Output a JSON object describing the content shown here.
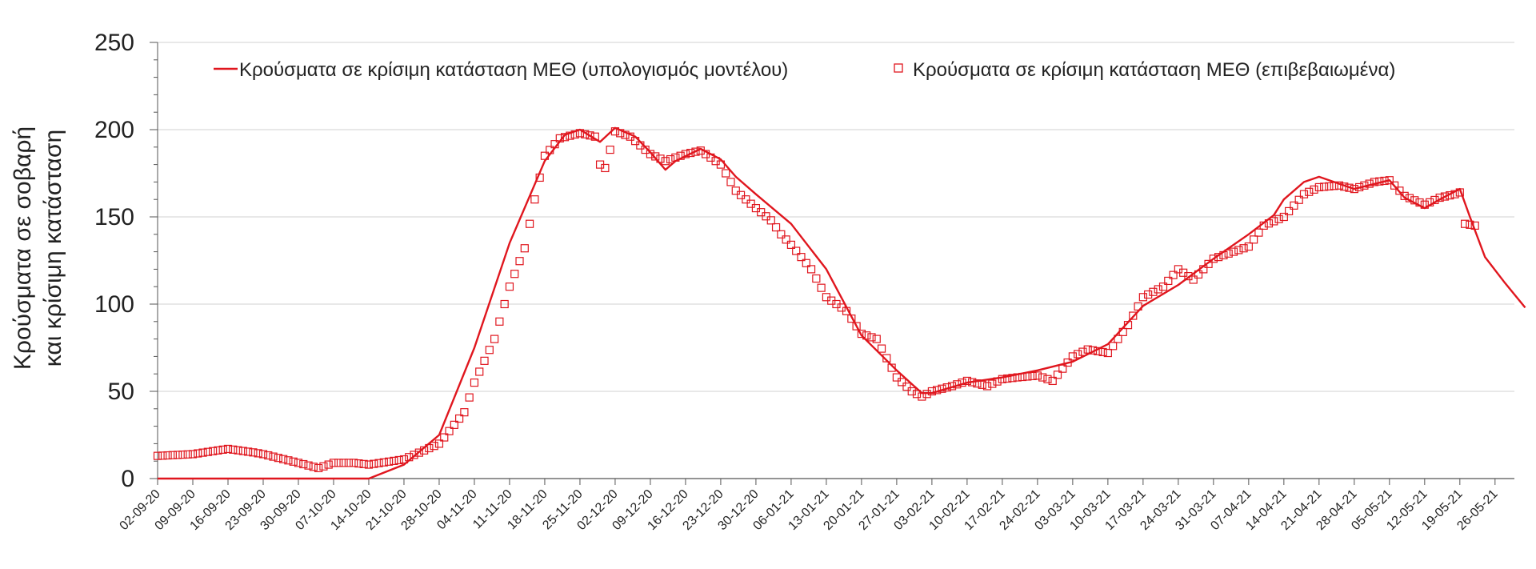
{
  "chart_data": {
    "type": "line",
    "ylabel_lines": [
      "Κρούσματα σε σοβαρή",
      "και κρίσιμη κατάσταση"
    ],
    "ylim": [
      0,
      250
    ],
    "yticks": [
      0,
      50,
      100,
      150,
      200,
      250
    ],
    "grid": true,
    "legend_position": "top",
    "colors": {
      "series": "#e0161e",
      "grid": "#d0d0d0",
      "axis": "#555555"
    },
    "x_tick_labels": [
      "02-09-20",
      "09-09-20",
      "16-09-20",
      "23-09-20",
      "30-09-20",
      "07-10-20",
      "14-10-20",
      "21-10-20",
      "28-10-20",
      "04-11-20",
      "11-11-20",
      "18-11-20",
      "25-11-20",
      "02-12-20",
      "09-12-20",
      "16-12-20",
      "23-12-20",
      "30-12-20",
      "06-01-21",
      "13-01-21",
      "20-01-21",
      "27-01-21",
      "03-02-21",
      "10-02-21",
      "17-02-21",
      "24-02-21",
      "03-03-21",
      "10-03-21",
      "17-03-21",
      "24-03-21",
      "31-03-21",
      "07-04-21",
      "14-04-21",
      "21-04-21",
      "28-04-21",
      "05-05-21",
      "12-05-21",
      "19-05-21",
      "26-05-21"
    ],
    "series": [
      {
        "name": "Κρούσματα σε κρίσιμη κατάσταση ΜΕΘ (υπολογισμός μοντέλου)",
        "style": "line",
        "points": [
          [
            "02-09-20",
            0
          ],
          [
            "14-10-20",
            0
          ],
          [
            "21-10-20",
            8
          ],
          [
            "28-10-20",
            25
          ],
          [
            "04-11-20",
            75
          ],
          [
            "11-11-20",
            135
          ],
          [
            "18-11-20",
            182
          ],
          [
            "22-11-20",
            197
          ],
          [
            "25-11-20",
            200
          ],
          [
            "29-11-20",
            193
          ],
          [
            "02-12-20",
            201
          ],
          [
            "06-12-20",
            196
          ],
          [
            "09-12-20",
            187
          ],
          [
            "12-12-20",
            177
          ],
          [
            "14-12-20",
            182
          ],
          [
            "19-12-20",
            189
          ],
          [
            "23-12-20",
            183
          ],
          [
            "26-12-20",
            173
          ],
          [
            "30-12-20",
            163
          ],
          [
            "06-01-21",
            146
          ],
          [
            "13-01-21",
            120
          ],
          [
            "20-01-21",
            82
          ],
          [
            "27-01-21",
            62
          ],
          [
            "01-02-21",
            49
          ],
          [
            "03-02-21",
            49
          ],
          [
            "10-02-21",
            55
          ],
          [
            "17-02-21",
            58
          ],
          [
            "24-02-21",
            62
          ],
          [
            "03-03-21",
            67
          ],
          [
            "10-03-21",
            77
          ],
          [
            "17-03-21",
            99
          ],
          [
            "24-03-21",
            111
          ],
          [
            "31-03-21",
            126
          ],
          [
            "07-04-21",
            140
          ],
          [
            "12-04-21",
            151
          ],
          [
            "14-04-21",
            160
          ],
          [
            "18-04-21",
            170
          ],
          [
            "21-04-21",
            173
          ],
          [
            "25-04-21",
            169
          ],
          [
            "28-04-21",
            166
          ],
          [
            "05-05-21",
            171
          ],
          [
            "08-05-21",
            161
          ],
          [
            "12-05-21",
            155
          ],
          [
            "15-05-21",
            160
          ],
          [
            "19-05-21",
            166
          ],
          [
            "21-05-21",
            150
          ],
          [
            "24-05-21",
            127
          ],
          [
            "28-05-21",
            112
          ],
          [
            "01-06-21",
            98
          ]
        ]
      },
      {
        "name": "Κρούσματα σε κρίσιμη κατάσταση ΜΕΘ (επιβεβαιωμένα)",
        "style": "markers",
        "points": [
          [
            "02-09-20",
            13
          ],
          [
            "09-09-20",
            14
          ],
          [
            "16-09-20",
            17
          ],
          [
            "21-09-20",
            15
          ],
          [
            "23-09-20",
            14
          ],
          [
            "30-09-20",
            9
          ],
          [
            "04-10-20",
            6
          ],
          [
            "07-10-20",
            9
          ],
          [
            "11-10-20",
            9
          ],
          [
            "14-10-20",
            8
          ],
          [
            "21-10-20",
            11
          ],
          [
            "28-10-20",
            20
          ],
          [
            "02-11-20",
            38
          ],
          [
            "04-11-20",
            55
          ],
          [
            "08-11-20",
            80
          ],
          [
            "11-11-20",
            110
          ],
          [
            "14-11-20",
            132
          ],
          [
            "16-11-20",
            160
          ],
          [
            "18-11-20",
            185
          ],
          [
            "21-11-20",
            195
          ],
          [
            "25-11-20",
            198
          ],
          [
            "28-11-20",
            196
          ],
          [
            "29-11-20",
            180
          ],
          [
            "30-11-20",
            178
          ],
          [
            "02-12-20",
            199
          ],
          [
            "05-12-20",
            196
          ],
          [
            "09-12-20",
            186
          ],
          [
            "12-12-20",
            182
          ],
          [
            "16-12-20",
            186
          ],
          [
            "19-12-20",
            188
          ],
          [
            "23-12-20",
            180
          ],
          [
            "26-12-20",
            165
          ],
          [
            "30-12-20",
            155
          ],
          [
            "02-01-21",
            148
          ],
          [
            "04-01-21",
            140
          ],
          [
            "06-01-21",
            134
          ],
          [
            "10-01-21",
            120
          ],
          [
            "13-01-21",
            104
          ],
          [
            "17-01-21",
            96
          ],
          [
            "20-01-21",
            83
          ],
          [
            "23-01-21",
            80
          ],
          [
            "27-01-21",
            58
          ],
          [
            "30-01-21",
            50
          ],
          [
            "01-02-21",
            47
          ],
          [
            "03-02-21",
            50
          ],
          [
            "07-02-21",
            53
          ],
          [
            "10-02-21",
            56
          ],
          [
            "14-02-21",
            53
          ],
          [
            "17-02-21",
            57
          ],
          [
            "20-02-21",
            58
          ],
          [
            "24-02-21",
            59
          ],
          [
            "27-02-21",
            56
          ],
          [
            "03-03-21",
            70
          ],
          [
            "06-03-21",
            74
          ],
          [
            "10-03-21",
            72
          ],
          [
            "14-03-21",
            88
          ],
          [
            "17-03-21",
            104
          ],
          [
            "21-03-21",
            110
          ],
          [
            "24-03-21",
            120
          ],
          [
            "27-03-21",
            114
          ],
          [
            "31-03-21",
            126
          ],
          [
            "04-04-21",
            130
          ],
          [
            "07-04-21",
            133
          ],
          [
            "10-04-21",
            145
          ],
          [
            "14-04-21",
            150
          ],
          [
            "18-04-21",
            163
          ],
          [
            "21-04-21",
            167
          ],
          [
            "25-04-21",
            168
          ],
          [
            "28-04-21",
            166
          ],
          [
            "02-05-21",
            170
          ],
          [
            "05-05-21",
            171
          ],
          [
            "08-05-21",
            162
          ],
          [
            "12-05-21",
            157
          ],
          [
            "15-05-21",
            161
          ],
          [
            "18-05-21",
            163
          ],
          [
            "19-05-21",
            164
          ],
          [
            "20-05-21",
            146
          ],
          [
            "22-05-21",
            145
          ]
        ]
      }
    ]
  }
}
